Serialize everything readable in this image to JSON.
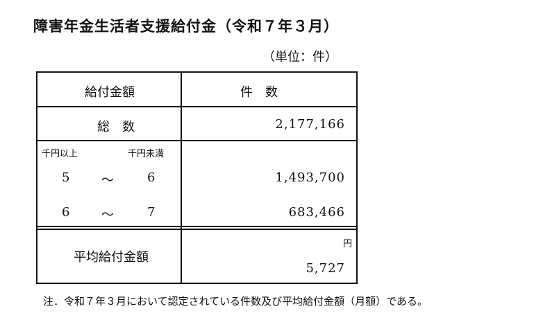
{
  "title": "障害年金生活者支援給付金（令和７年３月）",
  "unit": "（単位：件）",
  "table": {
    "header": {
      "amount": "給付金額",
      "count": "件　数"
    },
    "total": {
      "label": "総　数",
      "value": "2,177,166"
    },
    "range_header": {
      "from": "千円以上",
      "to": "千円未満"
    },
    "rows": [
      {
        "from": "5",
        "sep": "～",
        "to": "6",
        "value": "1,493,700"
      },
      {
        "from": "6",
        "sep": "～",
        "to": "7",
        "value": "683,466"
      }
    ],
    "average": {
      "label": "平均給付金額",
      "unit": "円",
      "value": "5,727"
    }
  },
  "note": "注．令和７年３月において認定されている件数及び平均給付金額（月額）である。"
}
